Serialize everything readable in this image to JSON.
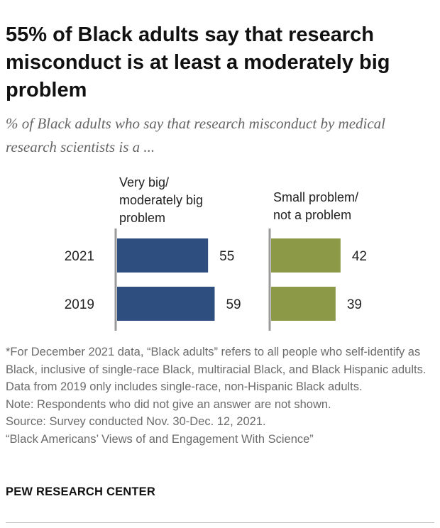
{
  "header": {
    "title": "55% of Black adults say that research misconduct is at least a moderately big problem",
    "subtitle": "% of Black adults who say that research misconduct by medical research scientists is a ..."
  },
  "chart_data": {
    "type": "bar",
    "orientation": "horizontal",
    "categories": [
      "2021",
      "2019"
    ],
    "series": [
      {
        "name": "Very big/ moderately big problem",
        "name_lines": [
          "Very big/",
          "moderately big",
          "problem"
        ],
        "values": [
          55,
          59
        ],
        "color": "#2d4e7f"
      },
      {
        "name": "Small problem/ not a problem",
        "name_lines": [
          "Small problem/",
          "not a problem"
        ],
        "values": [
          42,
          39
        ],
        "color": "#8c9a48"
      }
    ],
    "title": "55% of Black adults say that research misconduct is at least a moderately big problem",
    "xlim": [
      0,
      100
    ],
    "grid": false,
    "legend": "column headers"
  },
  "notes": {
    "footnote": "*For December 2021 data, “Black adults” refers to all people who self-identify as Black, inclusive of single-race Black, multiracial Black, and Black Hispanic adults. Data from 2019 only includes single-race, non-Hispanic Black adults.",
    "note": "Note: Respondents who did not give an answer are not shown.",
    "source": "Source: Survey conducted Nov. 30-Dec. 12, 2021.",
    "report": "“Black Americans’ Views of and Engagement With Science”"
  },
  "brand": "PEW RESEARCH CENTER",
  "colors": {
    "axis": "#9a9a9a",
    "text": "#222222",
    "muted": "#6b6b6b"
  }
}
